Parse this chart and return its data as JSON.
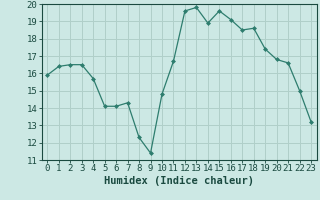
{
  "x": [
    0,
    1,
    2,
    3,
    4,
    5,
    6,
    7,
    8,
    9,
    10,
    11,
    12,
    13,
    14,
    15,
    16,
    17,
    18,
    19,
    20,
    21,
    22,
    23
  ],
  "y": [
    15.9,
    16.4,
    16.5,
    16.5,
    15.7,
    14.1,
    14.1,
    14.3,
    12.3,
    11.4,
    14.8,
    16.7,
    19.6,
    19.8,
    18.9,
    19.6,
    19.1,
    18.5,
    18.6,
    17.4,
    16.8,
    16.6,
    15.0,
    13.2
  ],
  "line_color": "#2e7d6e",
  "marker": "D",
  "marker_size": 2.0,
  "bg_color": "#cce8e4",
  "grid_color": "#b0cfc9",
  "xlabel": "Humidex (Indice chaleur)",
  "ylim": [
    11,
    20
  ],
  "xlim": [
    -0.5,
    23.5
  ],
  "yticks": [
    11,
    12,
    13,
    14,
    15,
    16,
    17,
    18,
    19,
    20
  ],
  "xticks": [
    0,
    1,
    2,
    3,
    4,
    5,
    6,
    7,
    8,
    9,
    10,
    11,
    12,
    13,
    14,
    15,
    16,
    17,
    18,
    19,
    20,
    21,
    22,
    23
  ],
  "tick_color": "#1a4a40",
  "axis_color": "#1a4a40",
  "xlabel_fontsize": 7.5,
  "tick_fontsize": 6.5
}
